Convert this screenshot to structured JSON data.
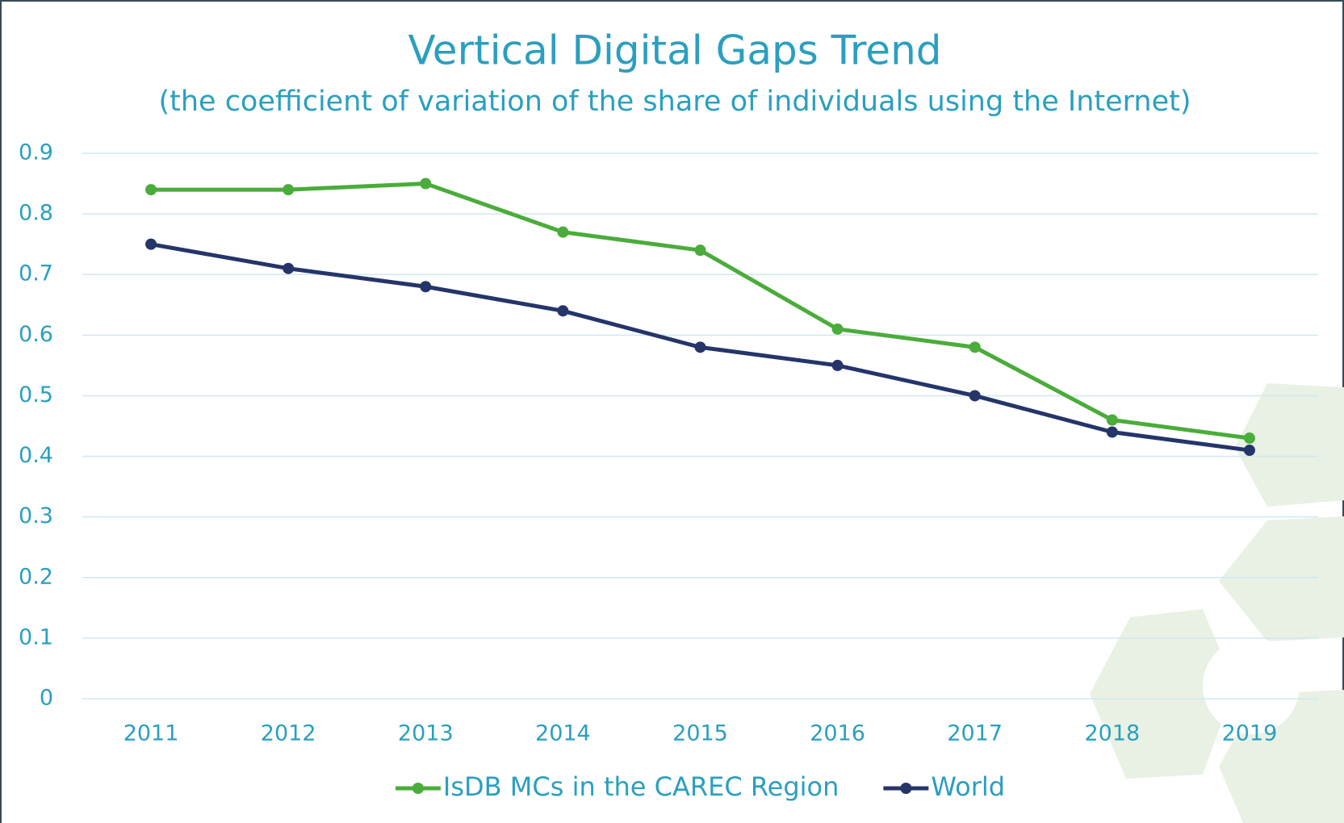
{
  "chart_data": {
    "type": "line",
    "title": "Vertical Digital Gaps Trend",
    "subtitle": "(the coefficient of variation of the share of individuals using the Internet)",
    "categories": [
      "2011",
      "2012",
      "2013",
      "2014",
      "2015",
      "2016",
      "2017",
      "2018",
      "2019"
    ],
    "series": [
      {
        "name": "IsDB MCs in the CAREC Region",
        "color": "#4aac3a",
        "values": [
          0.84,
          0.84,
          0.85,
          0.77,
          0.74,
          0.61,
          0.58,
          0.46,
          0.43
        ]
      },
      {
        "name": "World",
        "color": "#253569",
        "values": [
          0.75,
          0.71,
          0.68,
          0.64,
          0.58,
          0.55,
          0.5,
          0.44,
          0.41
        ]
      }
    ],
    "ylim": [
      0,
      0.9
    ],
    "yticks": [
      0,
      0.1,
      0.2,
      0.3,
      0.4,
      0.5,
      0.6,
      0.7,
      0.8,
      0.9
    ],
    "grid": true,
    "legend": "bottom"
  }
}
